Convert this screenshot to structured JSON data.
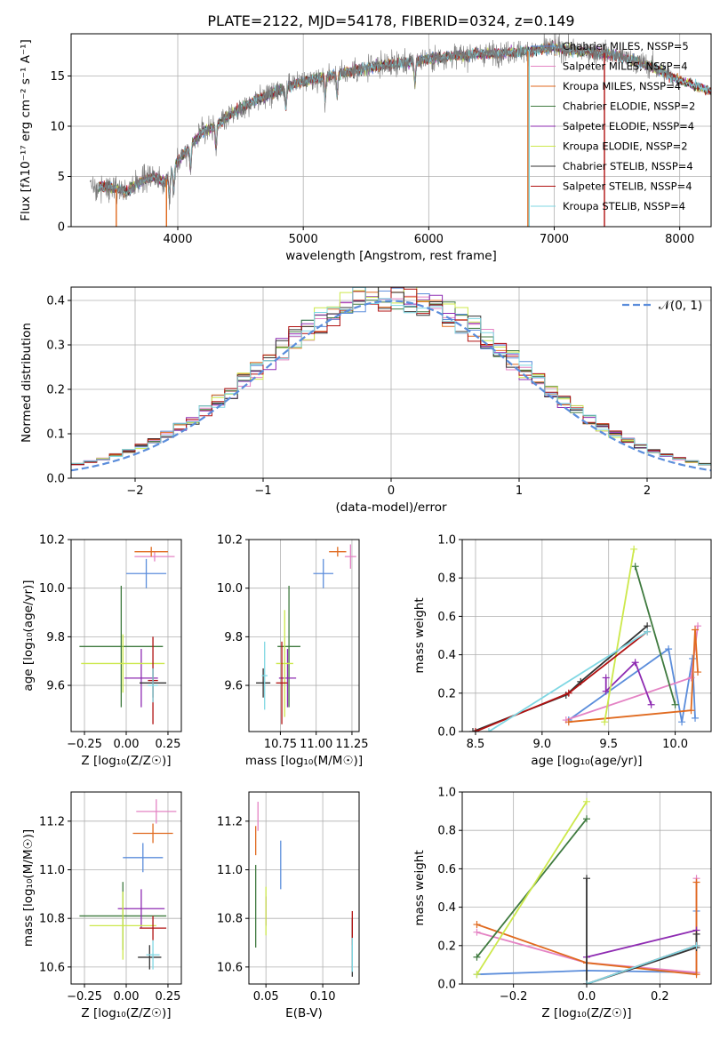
{
  "figure_title": "PLATE=2122, MJD=54178, FIBERID=0324, z=0.149",
  "colors": {
    "Chabrier MILES": "#5B8DDB",
    "Salpeter MILES": "#E483C4",
    "Kroupa MILES": "#E06A1F",
    "Chabrier ELODIE": "#3F7A3F",
    "Salpeter ELODIE": "#8E2BB2",
    "Kroupa ELODIE": "#CCE84A",
    "Chabrier STELIB": "#333333",
    "Salpeter STELIB": "#B01010",
    "Kroupa STELIB": "#7FD7E3",
    "gaussian": "#5B8DDB"
  },
  "chart_data": [
    {
      "id": "spectrum",
      "type": "line",
      "title": "PLATE=2122, MJD=54178, FIBERID=0324, z=0.149",
      "xlabel": "wavelength [Angstrom, rest frame]",
      "ylabel": "Flux [fλ10⁻¹⁷ erg cm⁻² s⁻¹ A⁻¹]",
      "xlim": [
        3150,
        8250
      ],
      "ylim": [
        0,
        19.2
      ],
      "xticks": [
        4000,
        5000,
        6000,
        7000,
        8000
      ],
      "yticks": [
        0,
        5,
        10,
        15
      ],
      "legend_position": "top-right",
      "series": [
        {
          "name": "Chabrier MILES, NSSP=5"
        },
        {
          "name": "Salpeter MILES, NSSP=4"
        },
        {
          "name": "Kroupa MILES, NSSP=4"
        },
        {
          "name": "Chabrier ELODIE, NSSP=2"
        },
        {
          "name": "Salpeter ELODIE, NSSP=4"
        },
        {
          "name": "Kroupa ELODIE, NSSP=2"
        },
        {
          "name": "Chabrier STELIB, NSSP=4"
        },
        {
          "name": "Salpeter STELIB, NSSP=4"
        },
        {
          "name": "Kroupa STELIB, NSSP=4"
        }
      ],
      "continuum": {
        "x": [
          3370,
          3500,
          3600,
          3700,
          3800,
          3900,
          4000,
          4100,
          4200,
          4300,
          4400,
          4600,
          4800,
          5000,
          5200,
          5400,
          5600,
          5800,
          6000,
          6200,
          6400,
          6600,
          6800,
          7000,
          7200,
          7400,
          7600,
          7800,
          8000
        ],
        "y": [
          4.0,
          3.8,
          3.5,
          4.5,
          5.0,
          4.5,
          6.5,
          8.0,
          9.5,
          10.0,
          11.0,
          12.5,
          13.5,
          14.5,
          15.0,
          15.5,
          16.0,
          16.3,
          16.7,
          17.0,
          17.2,
          17.3,
          17.5,
          17.8,
          17.5,
          17.3,
          16.7,
          15.8,
          14.5
        ]
      },
      "observed_extent": [
        3300,
        7950
      ],
      "model_extent": [
        3370,
        8250
      ]
    },
    {
      "id": "residuals",
      "type": "line",
      "xlabel": "(data-model)/error",
      "ylabel": "Normed distribution",
      "xlim": [
        -2.5,
        2.5
      ],
      "ylim": [
        0,
        0.43
      ],
      "xticks": [
        -2,
        -1,
        0,
        1,
        2
      ],
      "yticks": [
        0.0,
        0.1,
        0.2,
        0.3,
        0.4
      ],
      "legend": "𝒩(0, 1)",
      "legend_position": "top-right",
      "gaussian": {
        "mean": 0,
        "sigma": 1
      }
    },
    {
      "id": "age-vs-Z",
      "type": "scatter",
      "xlabel": "Z [log₁₀(Z/Z☉)]",
      "ylabel": "age  [log₁₀(age/yr)]",
      "xlim": [
        -0.33,
        0.33
      ],
      "ylim": [
        9.41,
        10.2
      ],
      "xticks": [
        -0.25,
        0.0,
        0.25
      ],
      "yticks": [
        9.6,
        9.8,
        10.0,
        10.2
      ],
      "points": [
        {
          "series": "Chabrier MILES",
          "x": 0.12,
          "y": 10.06,
          "xerr": 0.12,
          "yerr": 0.06
        },
        {
          "series": "Salpeter MILES",
          "x": 0.17,
          "y": 10.13,
          "xerr": 0.12,
          "yerr": 0.02
        },
        {
          "series": "Kroupa MILES",
          "x": 0.15,
          "y": 10.15,
          "xerr": 0.1,
          "yerr": 0.02
        },
        {
          "series": "Chabrier ELODIE",
          "x": -0.03,
          "y": 9.76,
          "xerr": 0.25,
          "yerr": 0.25
        },
        {
          "series": "Salpeter ELODIE",
          "x": 0.09,
          "y": 9.63,
          "xerr": 0.1,
          "yerr": 0.12
        },
        {
          "series": "Kroupa ELODIE",
          "x": -0.02,
          "y": 9.69,
          "xerr": 0.25,
          "yerr": 0.12
        },
        {
          "series": "Chabrier STELIB",
          "x": 0.16,
          "y": 9.61,
          "xerr": 0.08,
          "yerr": 0.06
        },
        {
          "series": "Salpeter STELIB",
          "x": 0.16,
          "y": 9.62,
          "xerr": 0.03,
          "yerr": 0.18
        },
        {
          "series": "Kroupa STELIB",
          "x": 0.16,
          "y": 9.6,
          "xerr": 0.03,
          "yerr": 0.07
        }
      ]
    },
    {
      "id": "age-vs-mass",
      "type": "scatter",
      "xlabel": "mass [log₁₀(M/M☉)]",
      "ylabel": "",
      "xlim": [
        10.53,
        11.3
      ],
      "ylim": [
        9.41,
        10.2
      ],
      "xticks": [
        10.75,
        11.0,
        11.25
      ],
      "yticks": [
        9.6,
        9.8,
        10.0,
        10.2
      ],
      "points": [
        {
          "series": "Chabrier MILES",
          "x": 11.05,
          "y": 10.06,
          "xerr": 0.07,
          "yerr": 0.06
        },
        {
          "series": "Salpeter MILES",
          "x": 11.24,
          "y": 10.13,
          "xerr": 0.04,
          "yerr": 0.05
        },
        {
          "series": "Kroupa MILES",
          "x": 11.15,
          "y": 10.15,
          "xerr": 0.06,
          "yerr": 0.02
        },
        {
          "series": "Chabrier ELODIE",
          "x": 10.81,
          "y": 9.76,
          "xerr": 0.08,
          "yerr": 0.25
        },
        {
          "series": "Salpeter ELODIE",
          "x": 10.8,
          "y": 9.63,
          "xerr": 0.06,
          "yerr": 0.12
        },
        {
          "series": "Kroupa ELODIE",
          "x": 10.78,
          "y": 9.69,
          "xerr": 0.06,
          "yerr": 0.22
        },
        {
          "series": "Chabrier STELIB",
          "x": 10.63,
          "y": 9.61,
          "xerr": 0.05,
          "yerr": 0.06
        },
        {
          "series": "Salpeter STELIB",
          "x": 10.76,
          "y": 9.61,
          "xerr": 0.04,
          "yerr": 0.17
        },
        {
          "series": "Kroupa STELIB",
          "x": 10.64,
          "y": 9.64,
          "xerr": 0.02,
          "yerr": 0.14
        }
      ]
    },
    {
      "id": "weight-vs-age",
      "type": "line",
      "xlabel": "age  [log₁₀(age/yr)]",
      "ylabel": "mass weight",
      "xlim": [
        8.4,
        10.27
      ],
      "ylim": [
        0,
        1.0
      ],
      "xticks": [
        8.5,
        9.0,
        9.5,
        10.0
      ],
      "yticks": [
        0.0,
        0.2,
        0.4,
        0.6,
        0.8,
        1.0
      ],
      "series": [
        {
          "series": "Chabrier MILES",
          "x": [
            9.2,
            9.95,
            10.05,
            10.13,
            10.15
          ],
          "y": [
            0.06,
            0.43,
            0.05,
            0.38,
            0.07
          ]
        },
        {
          "series": "Salpeter MILES",
          "x": [
            9.18,
            10.12,
            10.17
          ],
          "y": [
            0.06,
            0.28,
            0.55
          ]
        },
        {
          "series": "Kroupa MILES",
          "x": [
            9.2,
            10.12,
            10.15,
            10.17
          ],
          "y": [
            0.05,
            0.11,
            0.53,
            0.31
          ]
        },
        {
          "series": "Chabrier ELODIE",
          "x": [
            9.7,
            10.0
          ],
          "y": [
            0.86,
            0.14
          ]
        },
        {
          "series": "Salpeter ELODIE",
          "x": [
            9.48,
            9.48,
            9.7,
            9.82
          ],
          "y": [
            0.28,
            0.21,
            0.36,
            0.14
          ]
        },
        {
          "series": "Kroupa ELODIE",
          "x": [
            9.47,
            9.69
          ],
          "y": [
            0.05,
            0.95
          ]
        },
        {
          "series": "Chabrier STELIB",
          "x": [
            8.48,
            9.18,
            9.29,
            9.79
          ],
          "y": [
            0.0,
            0.19,
            0.26,
            0.55
          ]
        },
        {
          "series": "Salpeter STELIB",
          "x": [
            8.5,
            9.2,
            9.79
          ],
          "y": [
            0.0,
            0.2,
            0.52
          ]
        },
        {
          "series": "Kroupa STELIB",
          "x": [
            8.6,
            9.79
          ],
          "y": [
            0.0,
            0.52
          ]
        }
      ]
    },
    {
      "id": "mass-vs-Z",
      "type": "scatter",
      "xlabel": "Z [log₁₀(Z/Z☉)]",
      "ylabel": "mass [log₁₀(M/M☉)]",
      "xlim": [
        -0.33,
        0.33
      ],
      "ylim": [
        10.53,
        11.32
      ],
      "xticks": [
        -0.25,
        0.0,
        0.25
      ],
      "yticks": [
        10.6,
        10.8,
        11.0,
        11.2
      ],
      "points": [
        {
          "series": "Chabrier MILES",
          "x": 0.1,
          "y": 11.05,
          "xerr": 0.12,
          "yerr": 0.06
        },
        {
          "series": "Salpeter MILES",
          "x": 0.18,
          "y": 11.24,
          "xerr": 0.12,
          "yerr": 0.05
        },
        {
          "series": "Kroupa MILES",
          "x": 0.16,
          "y": 11.15,
          "xerr": 0.12,
          "yerr": 0.04
        },
        {
          "series": "Chabrier ELODIE",
          "x": -0.02,
          "y": 10.81,
          "xerr": 0.26,
          "yerr": 0.14
        },
        {
          "series": "Salpeter ELODIE",
          "x": 0.09,
          "y": 10.84,
          "xerr": 0.14,
          "yerr": 0.08
        },
        {
          "series": "Kroupa ELODIE",
          "x": -0.02,
          "y": 10.77,
          "xerr": 0.2,
          "yerr": 0.14
        },
        {
          "series": "Chabrier STELIB",
          "x": 0.14,
          "y": 10.64,
          "xerr": 0.07,
          "yerr": 0.05
        },
        {
          "series": "Salpeter STELIB",
          "x": 0.16,
          "y": 10.76,
          "xerr": 0.08,
          "yerr": 0.05
        },
        {
          "series": "Kroupa STELIB",
          "x": 0.16,
          "y": 10.65,
          "xerr": 0.04,
          "yerr": 0.06
        }
      ]
    },
    {
      "id": "mass-vs-ebv",
      "type": "scatter",
      "xlabel": "E(B-V)",
      "ylabel": "",
      "xlim": [
        0.035,
        0.132
      ],
      "ylim": [
        10.53,
        11.32
      ],
      "xticks": [
        0.05,
        0.1
      ],
      "yticks": [
        10.6,
        10.8,
        11.0,
        11.2
      ],
      "points": [
        {
          "series": "Chabrier MILES",
          "x": 0.063,
          "y": 11.02,
          "xerr": 0,
          "yerr": 0.1
        },
        {
          "series": "Salpeter MILES",
          "x": 0.043,
          "y": 11.22,
          "xerr": 0,
          "yerr": 0.06
        },
        {
          "series": "Kroupa MILES",
          "x": 0.041,
          "y": 11.12,
          "xerr": 0,
          "yerr": 0.06
        },
        {
          "series": "Chabrier ELODIE",
          "x": 0.041,
          "y": 10.85,
          "xerr": 0,
          "yerr": 0.17
        },
        {
          "series": "Salpeter ELODIE",
          "x": 0.05,
          "y": 10.83,
          "xerr": 0,
          "yerr": 0.06
        },
        {
          "series": "Kroupa ELODIE",
          "x": 0.05,
          "y": 10.83,
          "xerr": 0,
          "yerr": 0.1
        },
        {
          "series": "Chabrier STELIB",
          "x": 0.126,
          "y": 10.68,
          "xerr": 0,
          "yerr": 0.12
        },
        {
          "series": "Salpeter STELIB",
          "x": 0.126,
          "y": 10.76,
          "xerr": 0,
          "yerr": 0.07
        },
        {
          "series": "Kroupa STELIB",
          "x": 0.126,
          "y": 10.65,
          "xerr": 0,
          "yerr": 0.07
        }
      ]
    },
    {
      "id": "weight-vs-Z",
      "type": "line",
      "xlabel": "Z [log₁₀(Z/Z☉)]",
      "ylabel": "mass weight",
      "xlim": [
        -0.34,
        0.34
      ],
      "ylim": [
        0,
        1.0
      ],
      "xticks": [
        -0.2,
        0.0,
        0.2
      ],
      "yticks": [
        0.0,
        0.2,
        0.4,
        0.6,
        0.8,
        1.0
      ],
      "series": [
        {
          "series": "Chabrier MILES",
          "x": [
            -0.3,
            0.0,
            0.3,
            0.3
          ],
          "y": [
            0.05,
            0.07,
            0.06,
            0.38
          ]
        },
        {
          "series": "Salpeter MILES",
          "x": [
            -0.3,
            0.0,
            0.3,
            0.3
          ],
          "y": [
            0.27,
            0.11,
            0.06,
            0.55
          ]
        },
        {
          "series": "Kroupa MILES",
          "x": [
            -0.3,
            0.0,
            0.3,
            0.3
          ],
          "y": [
            0.31,
            0.11,
            0.05,
            0.53
          ]
        },
        {
          "series": "Chabrier ELODIE",
          "x": [
            -0.3,
            0.0
          ],
          "y": [
            0.14,
            0.86
          ]
        },
        {
          "series": "Salpeter ELODIE",
          "x": [
            0.0,
            0.3
          ],
          "y": [
            0.14,
            0.28
          ]
        },
        {
          "series": "Kroupa ELODIE",
          "x": [
            -0.3,
            0.0
          ],
          "y": [
            0.05,
            0.95
          ]
        },
        {
          "series": "Chabrier STELIB",
          "x": [
            0.0,
            0.0,
            0.3,
            0.3
          ],
          "y": [
            0.55,
            0.0,
            0.19,
            0.26
          ]
        },
        {
          "series": "Salpeter STELIB",
          "x": [
            0.0,
            0.3
          ],
          "y": [
            0.0,
            0.2
          ]
        },
        {
          "series": "Kroupa STELIB",
          "x": [
            0.0,
            0.3
          ],
          "y": [
            0.0,
            0.2
          ]
        }
      ]
    }
  ]
}
